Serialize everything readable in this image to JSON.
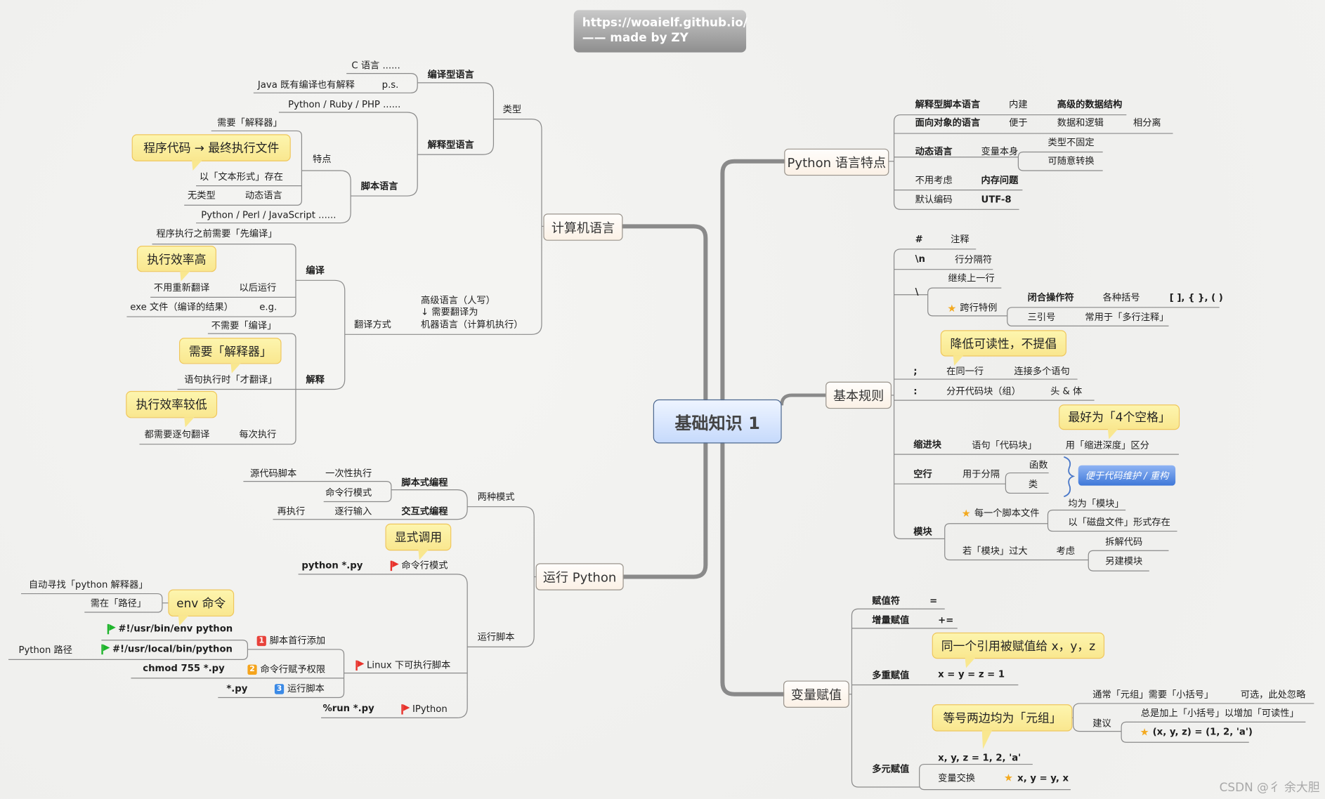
{
  "header": {
    "line1": "https://woaielf.github.io/",
    "line2": "—— made by ZY"
  },
  "root": "基础知识 1",
  "colors": {
    "callout": "#f9e78f",
    "root": "#c6dafc",
    "line": "#8a8a8a",
    "blue_note": "#3f78d8",
    "star": "#f3a91f"
  },
  "cl": {
    "title": "计算机语言",
    "items": [
      "类型",
      "编译型语言",
      "解释型语言",
      "C 语言 ......",
      "Java 既有编译也有解释",
      "p.s.",
      "Python / Ruby / PHP ......",
      "脚本语言",
      "特点",
      "需要「解释器」",
      "以「文本形式」存在",
      "无类型",
      "动态语言",
      "Python / Perl / JavaScript ......",
      "翻译方式",
      "高级语言（人写）",
      "↓ 需要翻译为",
      "机器语言（计算机执行）",
      "编译",
      "程序执行之前需要「先编译」",
      "不用重新翻译",
      "以后运行",
      "exe 文件（编译的结果）",
      "e.g.",
      "解释",
      "不需要「编译」",
      "语句执行时「才翻译」",
      "都需要逐句翻译",
      "每次执行"
    ],
    "callouts": [
      "程序代码 → 最终执行文件",
      "执行效率高",
      "需要「解释器」",
      "执行效率较低"
    ]
  },
  "run": {
    "title": "运行 Python",
    "items": [
      "两种模式",
      "脚本式编程",
      "交互式编程",
      "源代码脚本",
      "一次性执行",
      "命令行模式",
      "再执行",
      "逐行输入",
      "运行脚本",
      "python *.py",
      "命令行模式",
      "Linux 下可执行脚本",
      "%run *.py",
      "IPython",
      "脚本首行添加",
      "命令行赋予权限",
      "运行脚本",
      "#!/usr/bin/env python",
      "#!/usr/local/bin/python",
      "Python 路径",
      "chmod 755 *.py",
      "*.py",
      "自动寻找「python 解释器」",
      "需在「路径」"
    ],
    "badges": [
      "1",
      "2",
      "3"
    ],
    "callouts": [
      "显式调用",
      "env 命令"
    ]
  },
  "features": {
    "title": "Python 语言特点",
    "items": [
      "解释型脚本语言",
      "内建",
      "高级的数据结构",
      "面向对象的语言",
      "便于",
      "数据和逻辑",
      "相分离",
      "动态语言",
      "变量本身",
      "类型不固定",
      "可随意转换",
      "不用考虑",
      "内存问题",
      "默认编码",
      "UTF-8"
    ]
  },
  "rules": {
    "title": "基本规则",
    "items": [
      "#",
      "注释",
      "\\n",
      "行分隔符",
      "\\",
      "继续上一行",
      "跨行特例",
      "闭合操作符",
      "各种括号",
      "[ ], { }, ( )",
      "三引号",
      "常用于「多行注释」",
      ";",
      "在同一行",
      "连接多个语句",
      ":",
      "分开代码块（组）",
      "头 & 体",
      "缩进块",
      "语句「代码块」",
      "用「缩进深度」区分",
      "空行",
      "用于分隔",
      "函数",
      "类",
      "模块",
      "每一个脚本文件",
      "均为「模块」",
      "以「磁盘文件」形式存在",
      "若「模块」过大",
      "考虑",
      "拆解代码",
      "另建模块"
    ],
    "callouts": [
      "降低可读性，不提倡",
      "最好为「4个空格」"
    ],
    "note": "便于代码维护 / 重构"
  },
  "assign": {
    "title": "变量赋值",
    "items": [
      "赋值符",
      "=",
      "增量赋值",
      "+=",
      "多重赋值",
      "x = y = z = 1",
      "多元赋值",
      "x, y, z = 1, 2, 'a'",
      "变量交换",
      "x, y = y, x",
      "通常「元组」需要「小括号」",
      "可选，此处忽略",
      "建议",
      "总是加上「小括号」以增加「可读性」",
      "(x, y, z) = (1, 2, 'a')"
    ],
    "callouts": [
      "同一个引用被赋值给 x，y，z",
      "等号两边均为「元组」"
    ]
  },
  "watermark": "CSDN @彳 余大胆"
}
